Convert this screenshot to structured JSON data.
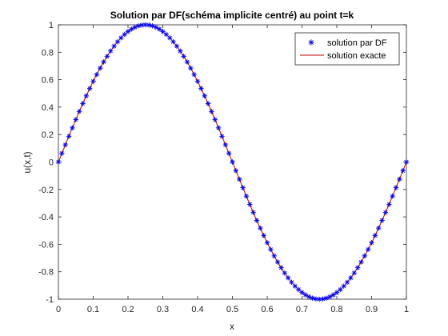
{
  "chart_data": {
    "type": "line",
    "title": "Solution par DF(schéma implicite centré) au point t=k",
    "xlabel": "x",
    "ylabel": "u(x,t)",
    "xlim": [
      0,
      1
    ],
    "ylim": [
      -1,
      1
    ],
    "x_ticks": [
      "0",
      "0.1",
      "0.2",
      "0.3",
      "0.4",
      "0.5",
      "0.6",
      "0.7",
      "0.8",
      "0.9",
      "1"
    ],
    "y_ticks": [
      "-1",
      "-0.8",
      "-0.6",
      "-0.4",
      "-0.2",
      "0",
      "0.2",
      "0.4",
      "0.6",
      "0.8",
      "1"
    ],
    "grid": false,
    "legend_position": "top-right",
    "series": [
      {
        "name": "solution par DF",
        "style": "markers",
        "marker": "asterisk",
        "color": "#0000ff",
        "x": [
          0,
          0.01,
          0.02,
          0.03,
          0.04,
          0.05,
          0.06,
          0.07,
          0.08,
          0.09,
          0.1,
          0.11,
          0.12,
          0.13,
          0.14,
          0.15,
          0.16,
          0.17,
          0.18,
          0.19,
          0.2,
          0.21,
          0.22,
          0.23,
          0.24,
          0.25,
          0.26,
          0.27,
          0.28,
          0.29,
          0.3,
          0.31,
          0.32,
          0.33,
          0.34,
          0.35,
          0.36,
          0.37,
          0.38,
          0.39,
          0.4,
          0.41,
          0.42,
          0.43,
          0.44,
          0.45,
          0.46,
          0.47,
          0.48,
          0.49,
          0.5,
          0.51,
          0.52,
          0.53,
          0.54,
          0.55,
          0.56,
          0.57,
          0.58,
          0.59,
          0.6,
          0.61,
          0.62,
          0.63,
          0.64,
          0.65,
          0.66,
          0.67,
          0.68,
          0.69,
          0.7,
          0.71,
          0.72,
          0.73,
          0.74,
          0.75,
          0.76,
          0.77,
          0.78,
          0.79,
          0.8,
          0.81,
          0.82,
          0.83,
          0.84,
          0.85,
          0.86,
          0.87,
          0.88,
          0.89,
          0.9,
          0.91,
          0.92,
          0.93,
          0.94,
          0.95,
          0.96,
          0.97,
          0.98,
          0.99,
          1
        ],
        "y": [
          0,
          0.0628,
          0.1253,
          0.1874,
          0.2487,
          0.309,
          0.3681,
          0.4258,
          0.4818,
          0.5358,
          0.5878,
          0.6374,
          0.6845,
          0.729,
          0.7705,
          0.809,
          0.8443,
          0.8763,
          0.9048,
          0.9298,
          0.9511,
          0.9686,
          0.9823,
          0.9921,
          0.998,
          1,
          0.998,
          0.9921,
          0.9823,
          0.9686,
          0.9511,
          0.9298,
          0.9048,
          0.8763,
          0.8443,
          0.809,
          0.7705,
          0.729,
          0.6845,
          0.6374,
          0.5878,
          0.5358,
          0.4818,
          0.4258,
          0.3681,
          0.309,
          0.2487,
          0.1874,
          0.1253,
          0.0628,
          0,
          -0.0628,
          -0.1253,
          -0.1874,
          -0.2487,
          -0.309,
          -0.3681,
          -0.4258,
          -0.4818,
          -0.5358,
          -0.5878,
          -0.6374,
          -0.6845,
          -0.729,
          -0.7705,
          -0.809,
          -0.8443,
          -0.8763,
          -0.9048,
          -0.9298,
          -0.9511,
          -0.9686,
          -0.9823,
          -0.9921,
          -0.998,
          -1,
          -0.998,
          -0.9921,
          -0.9823,
          -0.9686,
          -0.9511,
          -0.9298,
          -0.9048,
          -0.8763,
          -0.8443,
          -0.809,
          -0.7705,
          -0.729,
          -0.6845,
          -0.6374,
          -0.5878,
          -0.5358,
          -0.4818,
          -0.4258,
          -0.3681,
          -0.309,
          -0.2487,
          -0.1874,
          -0.1253,
          -0.0628,
          0
        ]
      },
      {
        "name": "solution exacte",
        "style": "line",
        "color": "#c00000",
        "x": [
          0,
          0.01,
          0.02,
          0.03,
          0.04,
          0.05,
          0.06,
          0.07,
          0.08,
          0.09,
          0.1,
          0.11,
          0.12,
          0.13,
          0.14,
          0.15,
          0.16,
          0.17,
          0.18,
          0.19,
          0.2,
          0.21,
          0.22,
          0.23,
          0.24,
          0.25,
          0.26,
          0.27,
          0.28,
          0.29,
          0.3,
          0.31,
          0.32,
          0.33,
          0.34,
          0.35,
          0.36,
          0.37,
          0.38,
          0.39,
          0.4,
          0.41,
          0.42,
          0.43,
          0.44,
          0.45,
          0.46,
          0.47,
          0.48,
          0.49,
          0.5,
          0.51,
          0.52,
          0.53,
          0.54,
          0.55,
          0.56,
          0.57,
          0.58,
          0.59,
          0.6,
          0.61,
          0.62,
          0.63,
          0.64,
          0.65,
          0.66,
          0.67,
          0.68,
          0.69,
          0.7,
          0.71,
          0.72,
          0.73,
          0.74,
          0.75,
          0.76,
          0.77,
          0.78,
          0.79,
          0.8,
          0.81,
          0.82,
          0.83,
          0.84,
          0.85,
          0.86,
          0.87,
          0.88,
          0.89,
          0.9,
          0.91,
          0.92,
          0.93,
          0.94,
          0.95,
          0.96,
          0.97,
          0.98,
          0.99,
          1
        ],
        "y": [
          0,
          0.0628,
          0.1253,
          0.1874,
          0.2487,
          0.309,
          0.3681,
          0.4258,
          0.4818,
          0.5358,
          0.5878,
          0.6374,
          0.6845,
          0.729,
          0.7705,
          0.809,
          0.8443,
          0.8763,
          0.9048,
          0.9298,
          0.9511,
          0.9686,
          0.9823,
          0.9921,
          0.998,
          1,
          0.998,
          0.9921,
          0.9823,
          0.9686,
          0.9511,
          0.9298,
          0.9048,
          0.8763,
          0.8443,
          0.809,
          0.7705,
          0.729,
          0.6845,
          0.6374,
          0.5878,
          0.5358,
          0.4818,
          0.4258,
          0.3681,
          0.309,
          0.2487,
          0.1874,
          0.1253,
          0.0628,
          0,
          -0.0628,
          -0.1253,
          -0.1874,
          -0.2487,
          -0.309,
          -0.3681,
          -0.4258,
          -0.4818,
          -0.5358,
          -0.5878,
          -0.6374,
          -0.6845,
          -0.729,
          -0.7705,
          -0.809,
          -0.8443,
          -0.8763,
          -0.9048,
          -0.9298,
          -0.9511,
          -0.9686,
          -0.9823,
          -0.9921,
          -0.998,
          -1,
          -0.998,
          -0.9921,
          -0.9823,
          -0.9686,
          -0.9511,
          -0.9298,
          -0.9048,
          -0.8763,
          -0.8443,
          -0.809,
          -0.7705,
          -0.729,
          -0.6845,
          -0.6374,
          -0.5878,
          -0.5358,
          -0.4818,
          -0.4258,
          -0.3681,
          -0.309,
          -0.2487,
          -0.1874,
          -0.1253,
          -0.0628,
          0
        ]
      }
    ]
  }
}
